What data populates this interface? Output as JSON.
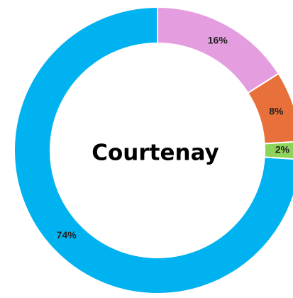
{
  "chart_data": {
    "type": "donut",
    "title": "Courtenay",
    "categories": [
      null,
      null,
      null,
      null
    ],
    "values": [
      16,
      8,
      2,
      74
    ],
    "value_labels": [
      "16%",
      "8%",
      "2%",
      "74%"
    ],
    "colors": [
      "#e49ddf",
      "#e8703a",
      "#8fd45a",
      "#00b2ef"
    ]
  }
}
